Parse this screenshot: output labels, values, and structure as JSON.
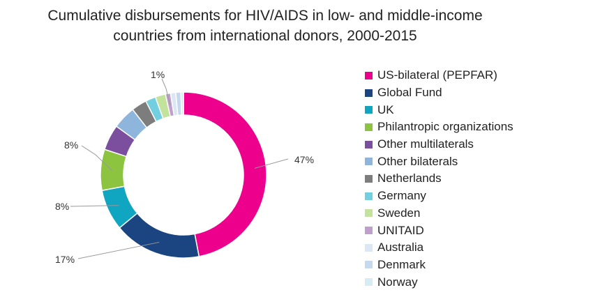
{
  "chart_data": {
    "type": "pie",
    "variant": "donut",
    "title": "Cumulative disbursements for HIV/AIDS in low- and middle-income countries from international donors, 2000-2015",
    "title_lines": [
      "Cumulative disbursements for HIV/AIDS in low- and middle-income",
      "countries from international donors, 2000-2015"
    ],
    "unit": "%",
    "legend_position": "right",
    "slices": [
      {
        "label": "US-bilateral (PEPFAR)",
        "value": 47,
        "color": "#ec008c"
      },
      {
        "label": "Global Fund",
        "value": 17,
        "color": "#1a4580"
      },
      {
        "label": "UK",
        "value": 8,
        "color": "#10a5c0"
      },
      {
        "label": "Philantropic organizations",
        "value": 8,
        "color": "#8cc43f"
      },
      {
        "label": "Other multilaterals",
        "value": 5,
        "color": "#7b4f9d"
      },
      {
        "label": "Other bilaterals",
        "value": 4.5,
        "color": "#8eb6dd"
      },
      {
        "label": "Netherlands",
        "value": 3,
        "color": "#7d7d7d"
      },
      {
        "label": "Germany",
        "value": 2,
        "color": "#72cfe0"
      },
      {
        "label": "Sweden",
        "value": 2,
        "color": "#c3e29b"
      },
      {
        "label": "UNITAID",
        "value": 1,
        "color": "#c09fcc"
      },
      {
        "label": "Australia",
        "value": 1,
        "color": "#dbe7f5"
      },
      {
        "label": "Denmark",
        "value": 1,
        "color": "#c5d9ee"
      },
      {
        "label": "Norway",
        "value": 0.5,
        "color": "#d6ecf4"
      }
    ],
    "data_labels": [
      {
        "slice": 0,
        "text": "47%"
      },
      {
        "slice": 1,
        "text": "17%"
      },
      {
        "slice": 2,
        "text": "8%"
      },
      {
        "slice": 3,
        "text": "8%"
      },
      {
        "slice": 9,
        "text": "1%"
      }
    ]
  }
}
